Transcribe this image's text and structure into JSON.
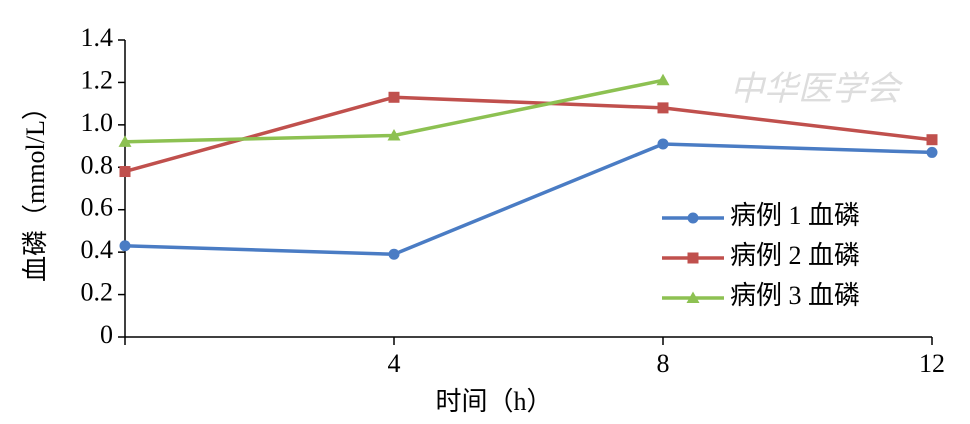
{
  "chart_data": {
    "type": "line",
    "x_label": "时间（h）",
    "y_label": "血磷（mmol/L）",
    "watermark": "中华医学会",
    "x": [
      0,
      4,
      8,
      12
    ],
    "xlim": [
      0,
      12
    ],
    "xticks": [
      4,
      8,
      12
    ],
    "ylim": [
      0,
      1.4
    ],
    "yticks": [
      0,
      0.2,
      0.4,
      0.6,
      0.8,
      {
        "value": 1,
        "label": "1.0"
      },
      1.2,
      1.4
    ],
    "legend": "right",
    "series": [
      {
        "name": "病例 1 血磷",
        "color": "#4a7cc4",
        "marker": "circle",
        "values": [
          0.43,
          0.39,
          0.91,
          0.87
        ]
      },
      {
        "name": "病例 2 血磷",
        "color": "#c0504d",
        "marker": "square",
        "values": [
          0.78,
          1.13,
          1.08,
          0.93
        ]
      },
      {
        "name": "病例 3 血磷",
        "color": "#8dc152",
        "marker": "triangle",
        "values": [
          0.92,
          0.95,
          1.21,
          null
        ]
      }
    ]
  }
}
